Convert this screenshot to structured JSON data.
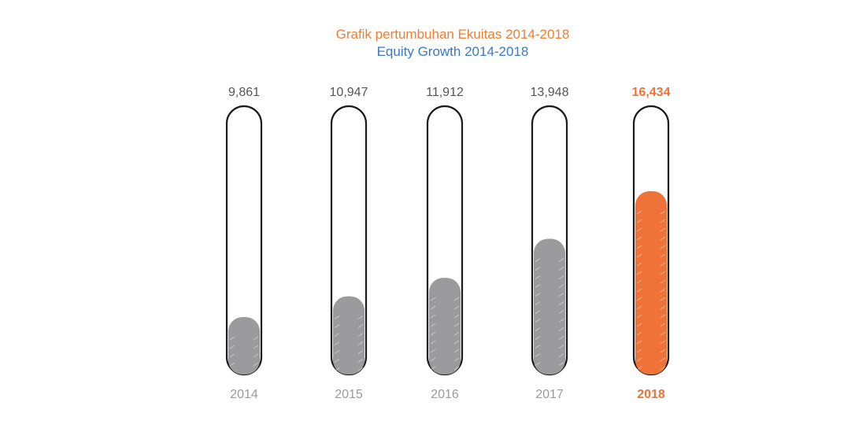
{
  "chart_data": {
    "type": "bar",
    "title": "Grafik pertumbuhan Ekuitas 2014-2018",
    "subtitle": "Equity Growth 2014-2018",
    "categories": [
      "2014",
      "2015",
      "2016",
      "2017",
      "2018"
    ],
    "values": [
      9861,
      10947,
      11912,
      13948,
      16434
    ],
    "value_labels": [
      "9,861",
      "10,947",
      "11,912",
      "13,948",
      "16,434"
    ],
    "highlight_index": 4,
    "xlabel": "",
    "ylabel": "",
    "grid": false
  },
  "colors": {
    "title": "#ef7d32",
    "subtitle": "#3a78c9",
    "highlight": "#ef7339",
    "bar": "#9b9b9d",
    "label": "#555555",
    "year": "#9a9a9a"
  }
}
